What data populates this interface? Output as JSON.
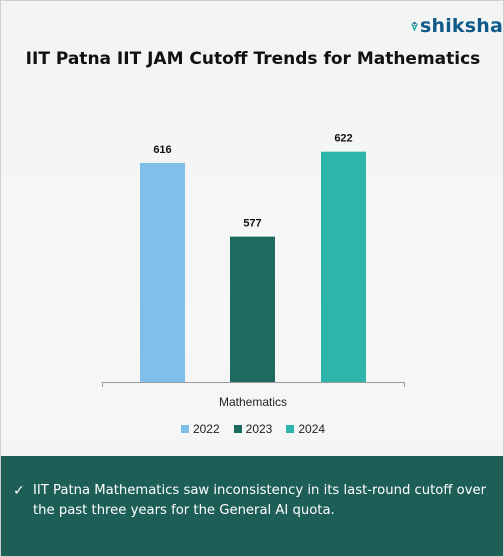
{
  "brand": {
    "name": "shiksha"
  },
  "chart_data": {
    "type": "bar",
    "title": "IIT Patna IIT JAM Cutoff Trends for Mathematics",
    "categories": [
      "Mathematics"
    ],
    "series": [
      {
        "name": "2022",
        "values": [
          616
        ],
        "color": "#7fbfea"
      },
      {
        "name": "2023",
        "values": [
          577
        ],
        "color": "#1d6b60"
      },
      {
        "name": "2024",
        "values": [
          622
        ],
        "color": "#2db5ac"
      }
    ],
    "xlabel": "",
    "ylabel": "",
    "ylim": [
      500,
      625
    ],
    "grid": false,
    "legend": "bottom",
    "data_labels": true
  },
  "note": {
    "icon": "check-icon",
    "text": "IIT Patna Mathematics saw inconsistency in its last-round cutoff over the past three years for the General AI quota."
  }
}
